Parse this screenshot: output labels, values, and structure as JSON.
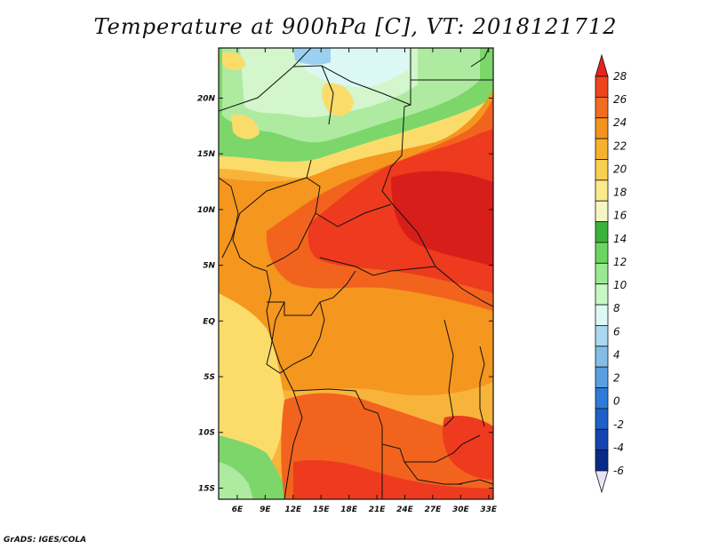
{
  "title": "Temperature at 900hPa [C], VT: 2018121712",
  "footer": "GrADS: IGES/COLA",
  "map": {
    "lon_labels": [
      "6E",
      "9E",
      "12E",
      "15E",
      "18E",
      "21E",
      "24E",
      "27E",
      "30E",
      "33E"
    ],
    "lat_labels": [
      "20N",
      "15N",
      "10N",
      "5N",
      "EQ",
      "5S",
      "10S",
      "15S"
    ],
    "lon_range_deg": [
      4,
      33.5
    ],
    "lat_range_deg": [
      -16,
      24.5
    ]
  },
  "colorbar": {
    "levels": [
      "28",
      "26",
      "24",
      "22",
      "20",
      "18",
      "16",
      "14",
      "12",
      "10",
      "8",
      "6",
      "4",
      "2",
      "0",
      "-2",
      "-4",
      "-6"
    ],
    "colors": [
      "#e8231f",
      "#f0441e",
      "#f26c1f",
      "#f5921e",
      "#f6b12e",
      "#f9cf52",
      "#fbea8c",
      "#f6f6c4",
      "#3bb33b",
      "#6bd55f",
      "#9ae992",
      "#c8f6c4",
      "#def8f4",
      "#aad8f0",
      "#84bde8",
      "#5a9fe0",
      "#2d7cd8",
      "#1e5fc8",
      "#1444b0",
      "#0a2a8a",
      "#0a1560"
    ]
  },
  "palette": {
    "red_dark": "#d81e1a",
    "red": "#ee3a1e",
    "orange_red": "#f2641e",
    "orange": "#f5961e",
    "light_orange": "#f8b43a",
    "yellow": "#fbdc6a",
    "pale_yellow": "#fdf0a8",
    "green": "#7cd66a",
    "light_green": "#aeeaa0",
    "pale_green": "#d3f6cc",
    "cyan": "#dcf8f4",
    "blue": "#9cd0f0"
  }
}
